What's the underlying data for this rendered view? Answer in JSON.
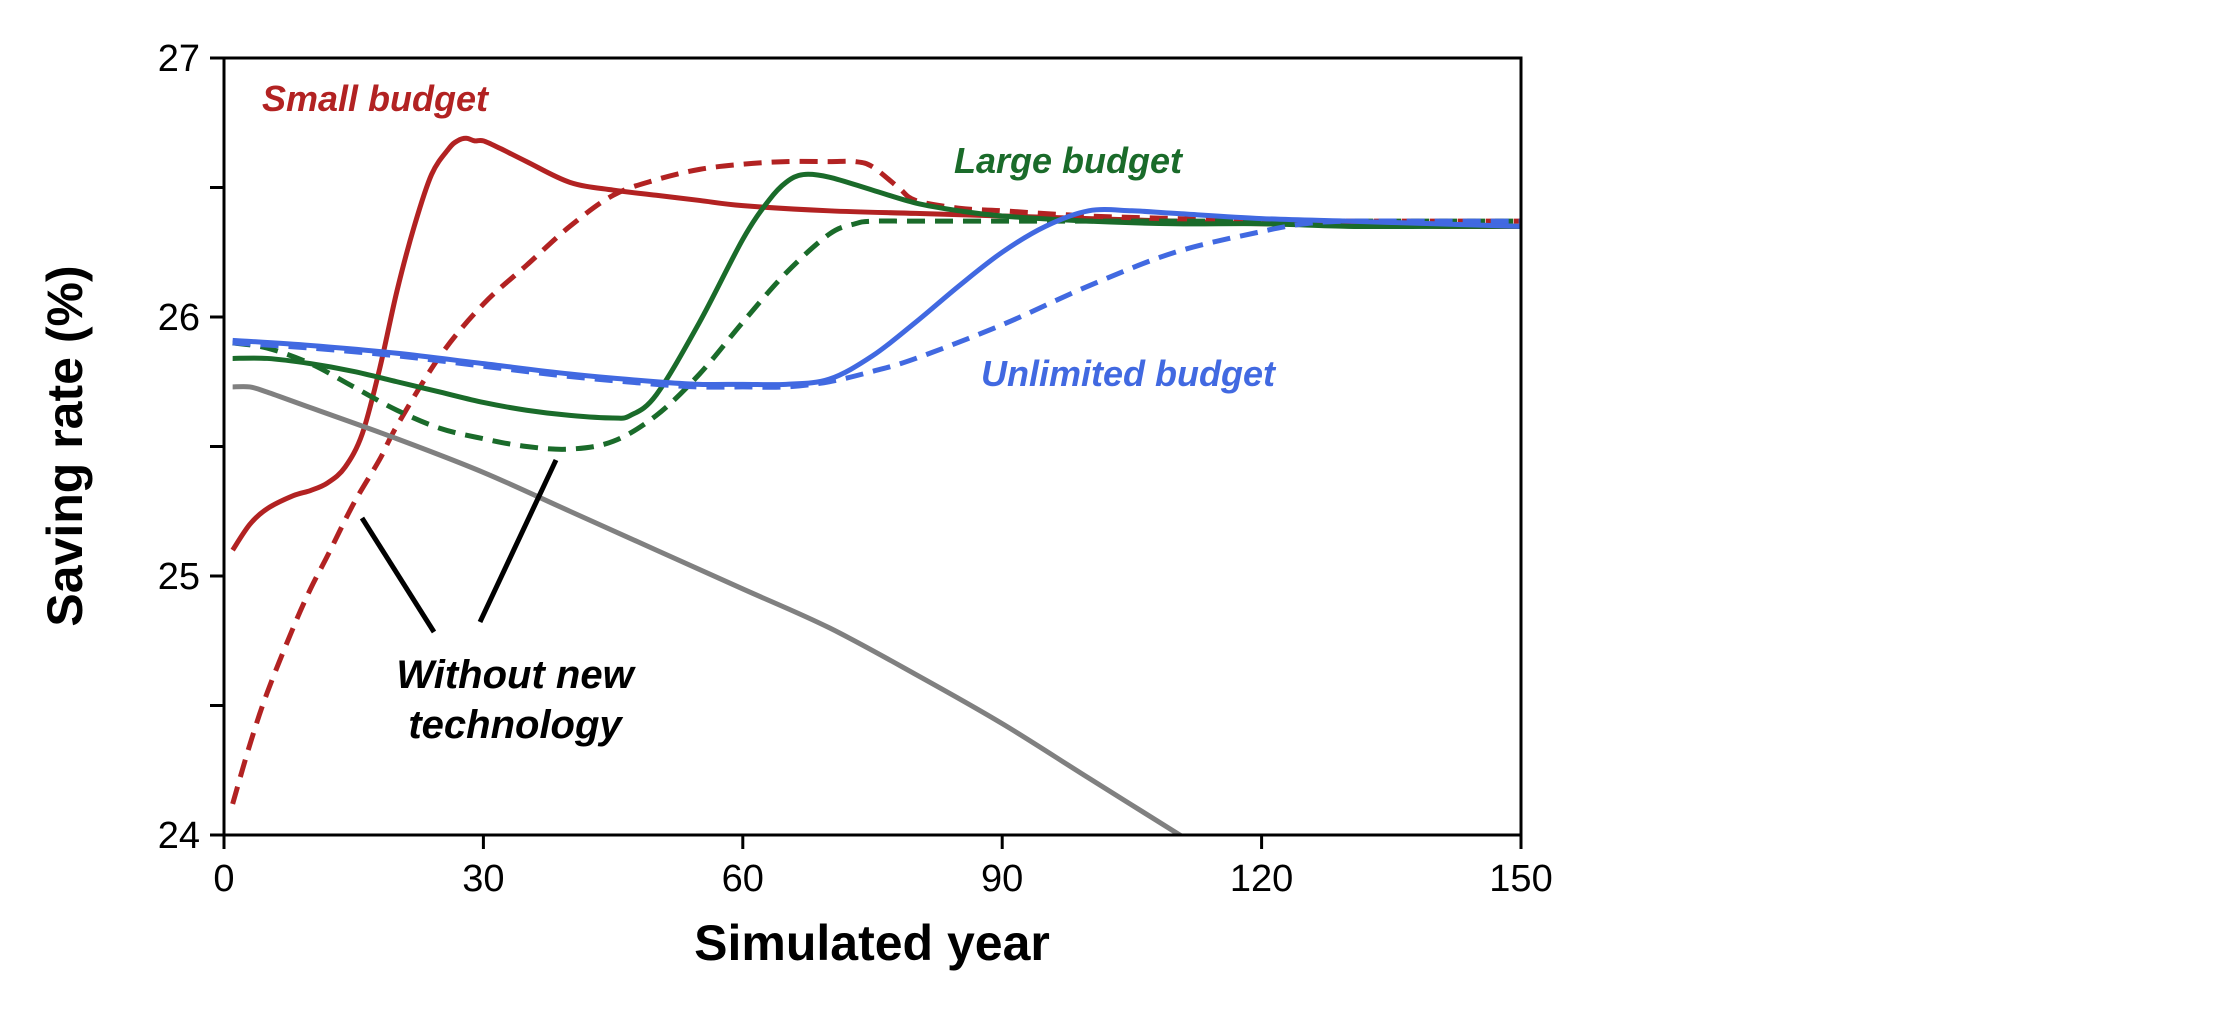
{
  "chart_data": {
    "type": "line",
    "title": "",
    "xlabel": "Simulated year",
    "ylabel": "Saving rate  (%)",
    "xlim": [
      0,
      150
    ],
    "ylim": [
      24,
      27
    ],
    "xticks": [
      0,
      30,
      60,
      90,
      120,
      150
    ],
    "yticks": [
      24,
      25,
      26,
      27
    ],
    "yminor_ticks": [
      24.5,
      25.5,
      26.5
    ],
    "grid": false,
    "legend": "none",
    "series_labels": [
      {
        "text": "Small budget",
        "color": "#b22222"
      },
      {
        "text": "Large budget",
        "color": "#1a6b2a"
      },
      {
        "text": "Unlimited budget",
        "color": "#4169e1"
      }
    ],
    "annotation": {
      "line1": "Without new",
      "line2": "technology"
    },
    "series": [
      {
        "name": "Small budget",
        "color": "#b22222",
        "dash": "solid",
        "x": [
          1,
          3,
          5,
          8,
          10,
          12,
          14,
          16,
          18,
          20,
          22,
          24,
          26,
          27,
          28,
          29,
          30,
          32,
          35,
          40,
          45,
          50,
          55,
          60,
          70,
          80,
          90,
          100,
          110,
          120,
          130,
          140,
          150
        ],
        "y": [
          25.1,
          25.2,
          25.26,
          25.31,
          25.33,
          25.36,
          25.42,
          25.55,
          25.8,
          26.1,
          26.35,
          26.55,
          26.65,
          26.68,
          26.69,
          26.68,
          26.68,
          26.65,
          26.6,
          26.52,
          26.49,
          26.47,
          26.45,
          26.43,
          26.41,
          26.4,
          26.39,
          26.38,
          26.37,
          26.36,
          26.36,
          26.35,
          26.35
        ]
      },
      {
        "name": "Small budget (without new technology)",
        "color": "#b22222",
        "dash": "dashed",
        "x": [
          1,
          3,
          5,
          8,
          10,
          12,
          15,
          18,
          20,
          25,
          30,
          35,
          40,
          45,
          50,
          55,
          60,
          65,
          70,
          73,
          75,
          78,
          80,
          85,
          90,
          100,
          110,
          120,
          130,
          140,
          150
        ],
        "y": [
          24.12,
          24.35,
          24.55,
          24.8,
          24.95,
          25.08,
          25.28,
          25.45,
          25.58,
          25.85,
          26.05,
          26.2,
          26.35,
          26.47,
          26.53,
          26.57,
          26.59,
          26.6,
          26.6,
          26.6,
          26.58,
          26.5,
          26.45,
          26.42,
          26.41,
          26.39,
          26.38,
          26.37,
          26.37,
          26.37,
          26.37
        ]
      },
      {
        "name": "Large budget",
        "color": "#1a6b2a",
        "dash": "solid",
        "x": [
          1,
          5,
          10,
          15,
          20,
          25,
          30,
          35,
          40,
          45,
          47,
          50,
          55,
          60,
          63,
          65,
          67,
          70,
          75,
          80,
          85,
          90,
          100,
          110,
          120,
          130,
          140,
          150
        ],
        "y": [
          25.84,
          25.84,
          25.82,
          25.79,
          25.75,
          25.71,
          25.67,
          25.64,
          25.62,
          25.61,
          25.62,
          25.7,
          25.98,
          26.3,
          26.45,
          26.52,
          26.55,
          26.54,
          26.49,
          26.44,
          26.41,
          26.39,
          26.37,
          26.36,
          26.36,
          26.35,
          26.35,
          26.35
        ]
      },
      {
        "name": "Large budget (without new technology)",
        "color": "#1a6b2a",
        "dash": "dashed",
        "x": [
          1,
          5,
          10,
          15,
          20,
          25,
          30,
          35,
          40,
          45,
          50,
          55,
          60,
          65,
          70,
          73,
          75,
          80,
          90,
          100,
          110,
          120,
          130,
          140,
          150
        ],
        "y": [
          25.9,
          25.88,
          25.82,
          25.73,
          25.64,
          25.57,
          25.53,
          25.5,
          25.49,
          25.52,
          25.62,
          25.78,
          25.98,
          26.17,
          26.32,
          26.36,
          26.37,
          26.37,
          26.37,
          26.37,
          26.37,
          26.37,
          26.37,
          26.37,
          26.37
        ]
      },
      {
        "name": "Unlimited budget",
        "color": "#4169e1",
        "dash": "solid",
        "x": [
          1,
          10,
          20,
          30,
          40,
          50,
          55,
          60,
          65,
          70,
          75,
          80,
          85,
          90,
          95,
          100,
          105,
          110,
          120,
          130,
          140,
          150
        ],
        "y": [
          25.91,
          25.89,
          25.86,
          25.82,
          25.78,
          25.75,
          25.74,
          25.74,
          25.74,
          25.76,
          25.85,
          25.98,
          26.12,
          26.25,
          26.35,
          26.41,
          26.41,
          26.4,
          26.38,
          26.37,
          26.36,
          26.35
        ]
      },
      {
        "name": "Unlimited budget (without new technology)",
        "color": "#4169e1",
        "dash": "dashed",
        "x": [
          1,
          10,
          20,
          30,
          40,
          50,
          55,
          60,
          65,
          70,
          75,
          80,
          90,
          100,
          110,
          120,
          125,
          130,
          140,
          150
        ],
        "y": [
          25.9,
          25.88,
          25.85,
          25.81,
          25.77,
          25.74,
          25.73,
          25.73,
          25.73,
          25.75,
          25.79,
          25.84,
          25.97,
          26.12,
          26.25,
          26.33,
          26.36,
          26.37,
          26.37,
          26.37
        ]
      },
      {
        "name": "Without new technology (baseline)",
        "color": "#808080",
        "dash": "solid",
        "x": [
          1,
          3,
          5,
          10,
          20,
          30,
          40,
          50,
          60,
          70,
          80,
          90,
          100,
          111.5
        ],
        "y": [
          25.73,
          25.73,
          25.71,
          25.65,
          25.53,
          25.4,
          25.25,
          25.1,
          24.95,
          24.8,
          24.62,
          24.43,
          24.22,
          23.98
        ]
      }
    ]
  }
}
